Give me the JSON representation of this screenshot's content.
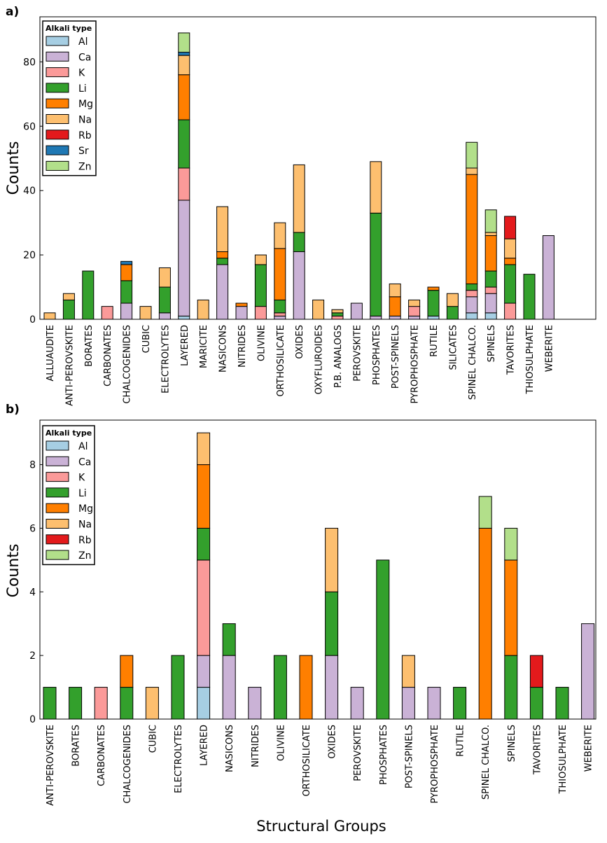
{
  "panels": [
    {
      "label": "a)"
    },
    {
      "label": "b)"
    }
  ],
  "xlabel_footer": "Structural Groups",
  "colors": {
    "Al": "#a6cee3",
    "Ca": "#cab2d6",
    "K": "#fb9a99",
    "Li": "#33a02c",
    "Mg": "#ff7f00",
    "Na": "#fdbf6f",
    "Rb": "#e31a1c",
    "Sr": "#1f78b4",
    "Zn": "#b2df8a"
  },
  "chart_data": [
    {
      "type": "bar",
      "stacked": true,
      "title": "",
      "xlabel": "",
      "ylabel": "Counts",
      "ylim": [
        0,
        94
      ],
      "yticks": [
        0,
        20,
        40,
        60,
        80
      ],
      "legend": {
        "title": "Alkali type",
        "position": "top-left",
        "entries": [
          "Al",
          "Ca",
          "K",
          "Li",
          "Mg",
          "Na",
          "Rb",
          "Sr",
          "Zn"
        ]
      },
      "categories": [
        "ALLUAUDITE",
        "ANTI-PEROVSKITE",
        "BORATES",
        "CARBONATES",
        "CHALCOGENIDES",
        "CUBIC",
        "ELECTROLYTES",
        "LAYERED",
        "MARICITE",
        "NASICONS",
        "NITRIDES",
        "OLIVINE",
        "ORTHOSILICATE",
        "OXIDES",
        "OXYFLUROIDES",
        "P.B. ANALOGS",
        "PEROVSKITE",
        "PHOSPHATES",
        "POST-SPINELS",
        "PYROPHOSPHATE",
        "RUTILE",
        "SILICATES",
        "SPINEL CHALCO.",
        "SPINELS",
        "TAVORITES",
        "THIOSULPHATE",
        "WEBERITE"
      ],
      "series": [
        {
          "name": "Al",
          "values": [
            0,
            0,
            0,
            0,
            0,
            0,
            0,
            1,
            0,
            0,
            0,
            0,
            0,
            0,
            0,
            0,
            0,
            0,
            0,
            0,
            1,
            0,
            2,
            2,
            0,
            0,
            0
          ]
        },
        {
          "name": "Ca",
          "values": [
            0,
            0,
            0,
            0,
            5,
            0,
            2,
            36,
            0,
            17,
            4,
            0,
            1,
            21,
            0,
            0,
            5,
            1,
            1,
            1,
            0,
            0,
            5,
            6,
            0,
            0,
            26
          ]
        },
        {
          "name": "K",
          "values": [
            0,
            0,
            0,
            4,
            0,
            0,
            0,
            10,
            0,
            0,
            0,
            4,
            1,
            0,
            0,
            1,
            0,
            0,
            0,
            3,
            0,
            0,
            2,
            2,
            5,
            0,
            0
          ]
        },
        {
          "name": "Li",
          "values": [
            0,
            6,
            15,
            0,
            7,
            0,
            8,
            15,
            0,
            2,
            0,
            13,
            4,
            6,
            0,
            1,
            0,
            32,
            0,
            0,
            8,
            4,
            2,
            5,
            12,
            14,
            0
          ]
        },
        {
          "name": "Mg",
          "values": [
            0,
            0,
            0,
            0,
            5,
            0,
            0,
            14,
            0,
            2,
            1,
            0,
            16,
            0,
            0,
            0,
            0,
            0,
            6,
            0,
            1,
            0,
            34,
            11,
            2,
            0,
            0
          ]
        },
        {
          "name": "Na",
          "values": [
            2,
            2,
            0,
            0,
            0,
            4,
            6,
            6,
            6,
            14,
            0,
            3,
            8,
            21,
            6,
            1,
            0,
            16,
            4,
            2,
            0,
            4,
            2,
            1,
            6,
            0,
            0
          ]
        },
        {
          "name": "Rb",
          "values": [
            0,
            0,
            0,
            0,
            0,
            0,
            0,
            0,
            0,
            0,
            0,
            0,
            0,
            0,
            0,
            0,
            0,
            0,
            0,
            0,
            0,
            0,
            0,
            0,
            7,
            0,
            0
          ]
        },
        {
          "name": "Sr",
          "values": [
            0,
            0,
            0,
            0,
            1,
            0,
            0,
            1,
            0,
            0,
            0,
            0,
            0,
            0,
            0,
            0,
            0,
            0,
            0,
            0,
            0,
            0,
            0,
            0,
            0,
            0,
            0
          ]
        },
        {
          "name": "Zn",
          "values": [
            0,
            0,
            0,
            0,
            0,
            0,
            0,
            6,
            0,
            0,
            0,
            0,
            0,
            0,
            0,
            0,
            0,
            0,
            0,
            0,
            0,
            0,
            8,
            7,
            0,
            0,
            0
          ]
        }
      ]
    },
    {
      "type": "bar",
      "stacked": true,
      "title": "",
      "xlabel": "Structural Groups",
      "ylabel": "Counts",
      "ylim": [
        0,
        9.4
      ],
      "yticks": [
        0,
        2,
        4,
        6,
        8
      ],
      "legend": {
        "title": "Alkali type",
        "position": "top-left",
        "entries": [
          "Al",
          "Ca",
          "K",
          "Li",
          "Mg",
          "Na",
          "Rb",
          "Zn"
        ]
      },
      "categories": [
        "ANTI-PEROVSKITE",
        "BORATES",
        "CARBONATES",
        "CHALCOGENIDES",
        "CUBIC",
        "ELECTROLYTES",
        "LAYERED",
        "NASICONS",
        "NITRIDES",
        "OLIVINE",
        "ORTHOSILICATE",
        "OXIDES",
        "PEROVSKITE",
        "PHOSPHATES",
        "POST-SPINELS",
        "PYROPHOSPHATE",
        "RUTILE",
        "SPINEL CHALCO.",
        "SPINELS",
        "TAVORITES",
        "THIOSULPHATE",
        "WEBERITE"
      ],
      "series": [
        {
          "name": "Al",
          "values": [
            0,
            0,
            0,
            0,
            0,
            0,
            1,
            0,
            0,
            0,
            0,
            0,
            0,
            0,
            0,
            0,
            0,
            0,
            0,
            0,
            0,
            0
          ]
        },
        {
          "name": "Ca",
          "values": [
            0,
            0,
            0,
            0,
            0,
            0,
            1,
            2,
            1,
            0,
            0,
            2,
            1,
            0,
            1,
            1,
            0,
            0,
            0,
            0,
            0,
            3
          ]
        },
        {
          "name": "K",
          "values": [
            0,
            0,
            1,
            0,
            0,
            0,
            3,
            0,
            0,
            0,
            0,
            0,
            0,
            0,
            0,
            0,
            0,
            0,
            0,
            0,
            0,
            0
          ]
        },
        {
          "name": "Li",
          "values": [
            1,
            1,
            0,
            1,
            0,
            2,
            1,
            1,
            0,
            2,
            0,
            2,
            0,
            5,
            0,
            0,
            1,
            0,
            2,
            1,
            1,
            0
          ]
        },
        {
          "name": "Mg",
          "values": [
            0,
            0,
            0,
            1,
            0,
            0,
            2,
            0,
            0,
            0,
            2,
            0,
            0,
            0,
            0,
            0,
            0,
            6,
            3,
            0,
            0,
            0
          ]
        },
        {
          "name": "Na",
          "values": [
            0,
            0,
            0,
            0,
            1,
            0,
            1,
            0,
            0,
            0,
            0,
            2,
            0,
            0,
            1,
            0,
            0,
            0,
            0,
            0,
            0,
            0
          ]
        },
        {
          "name": "Rb",
          "values": [
            0,
            0,
            0,
            0,
            0,
            0,
            0,
            0,
            0,
            0,
            0,
            0,
            0,
            0,
            0,
            0,
            0,
            0,
            0,
            1,
            0,
            0
          ]
        },
        {
          "name": "Zn",
          "values": [
            0,
            0,
            0,
            0,
            0,
            0,
            0,
            0,
            0,
            0,
            0,
            0,
            0,
            0,
            0,
            0,
            0,
            1,
            1,
            0,
            0,
            0
          ]
        }
      ]
    }
  ]
}
